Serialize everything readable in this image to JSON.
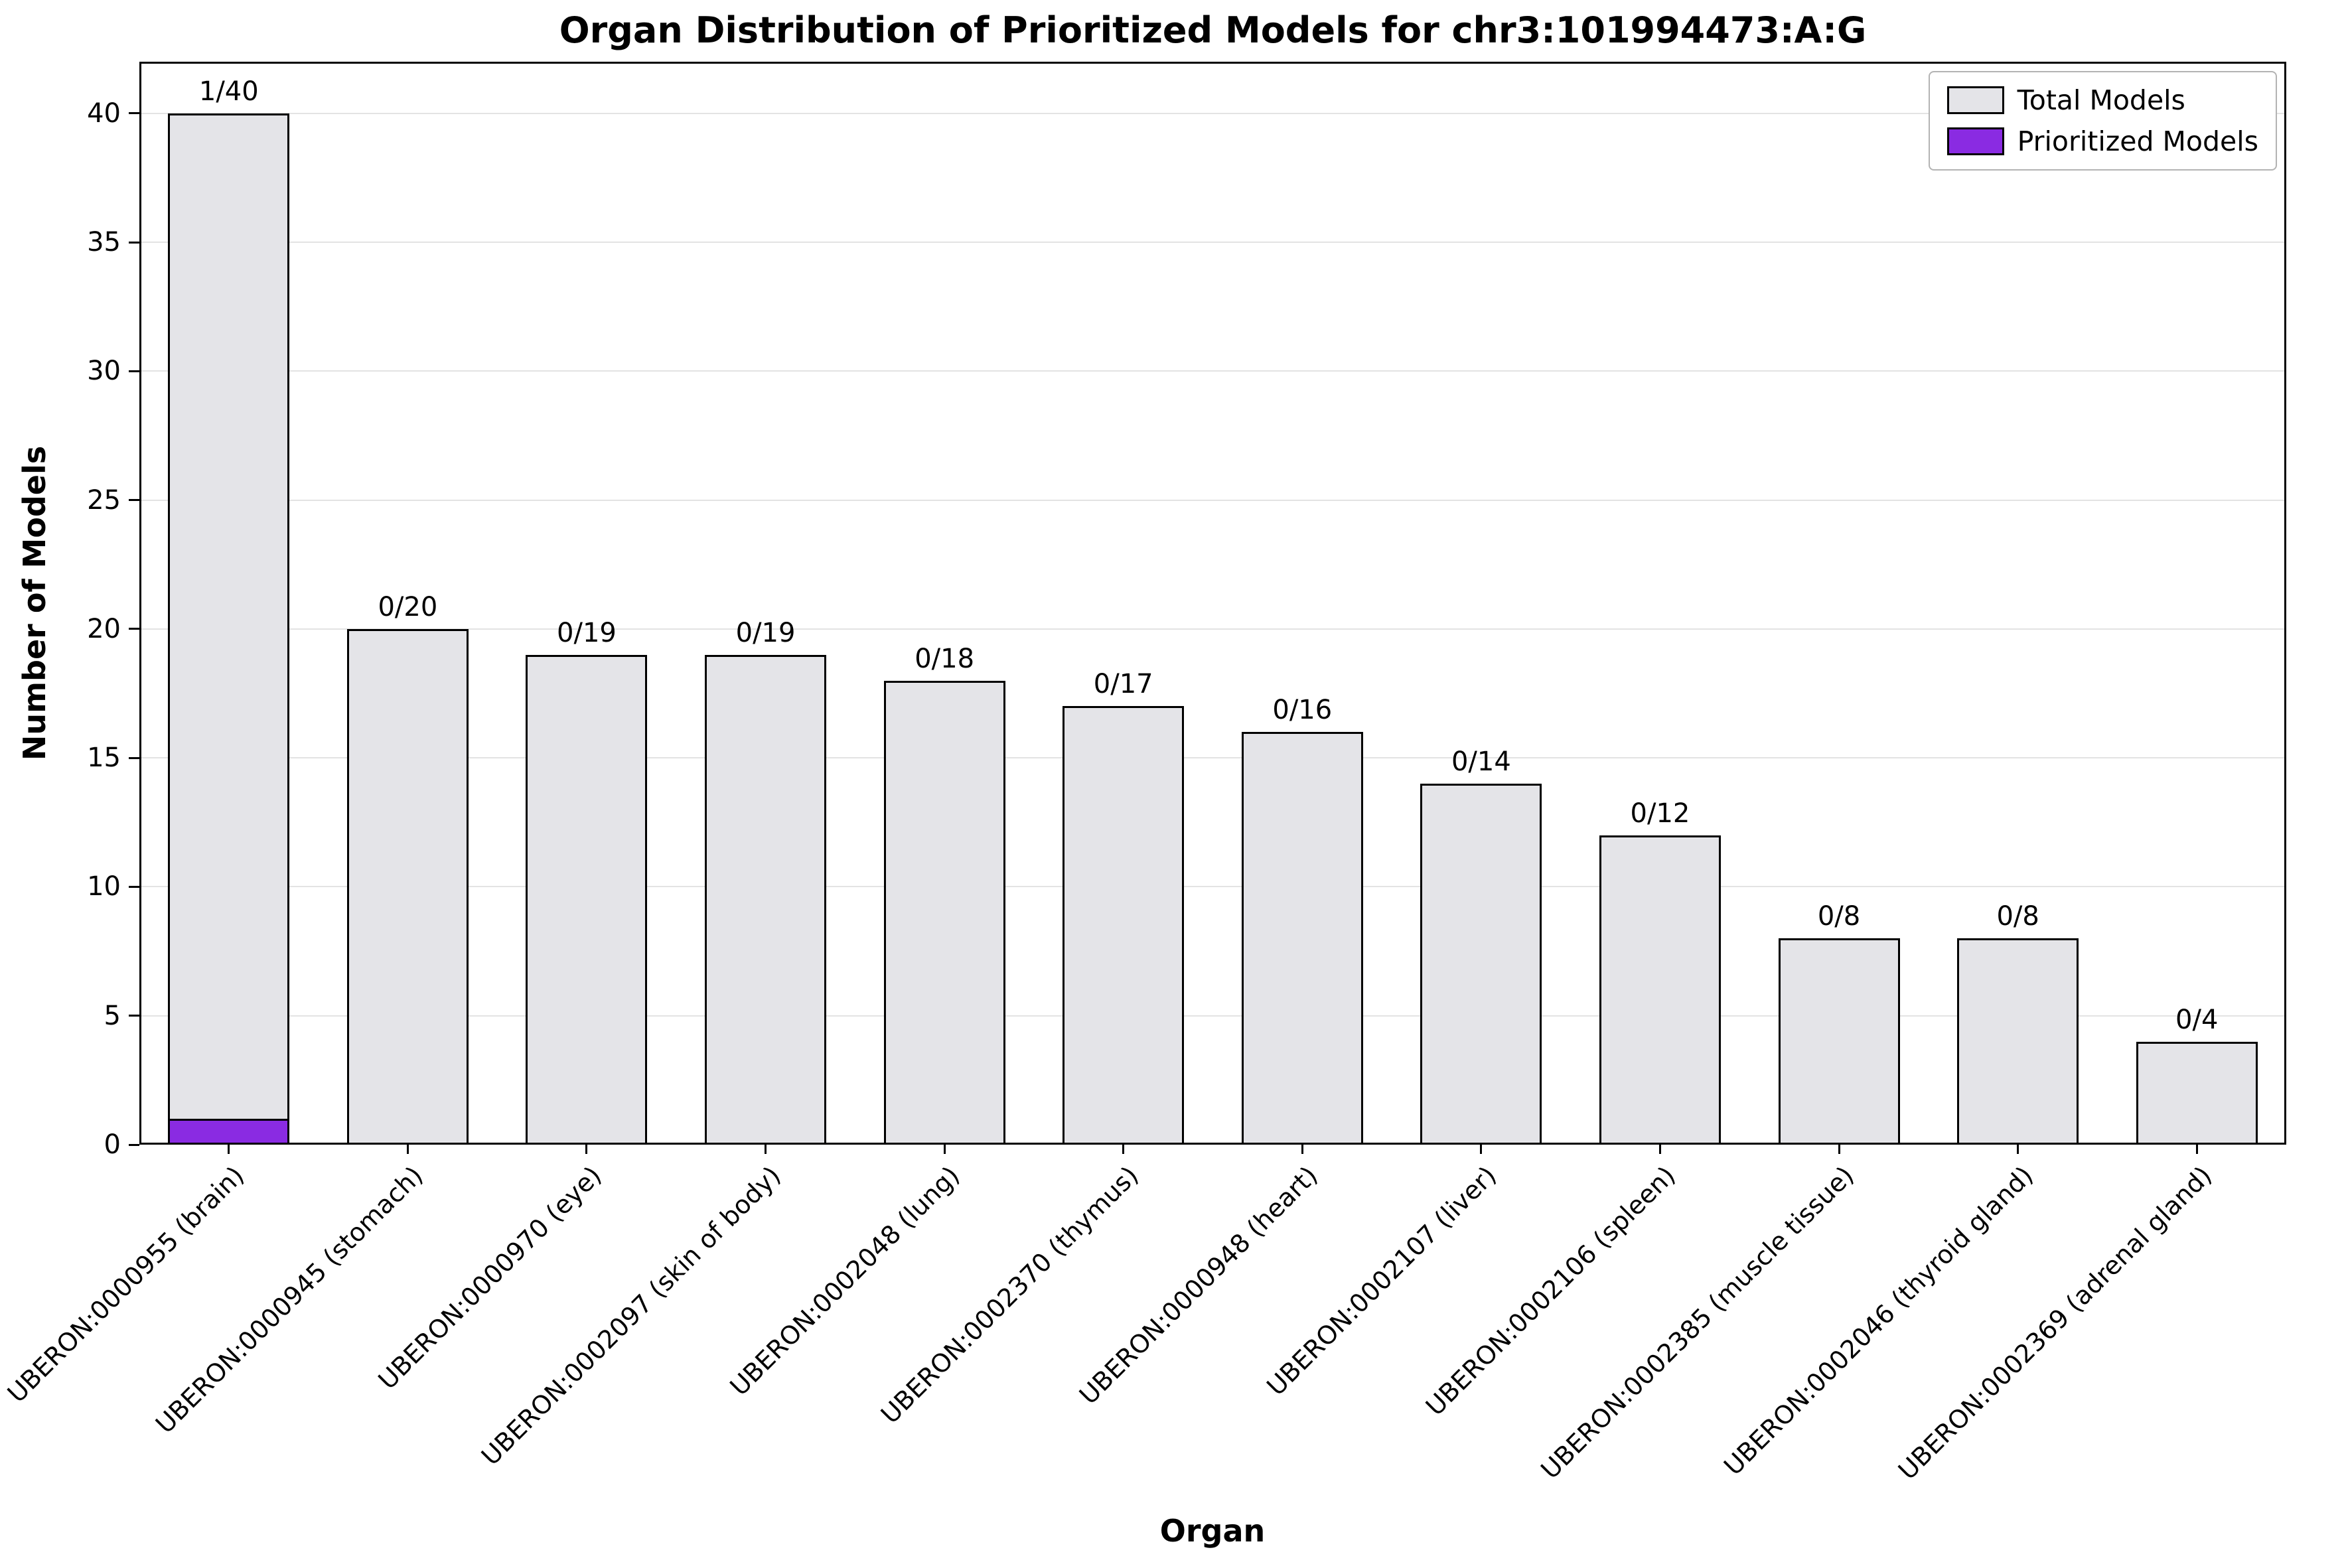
{
  "chart_data": {
    "type": "bar",
    "title": "Organ Distribution of Prioritized Models for chr3:101994473:A:G",
    "xlabel": "Organ",
    "ylabel": "Number of Models",
    "ylim": [
      0,
      42
    ],
    "yticks": [
      0,
      5,
      10,
      15,
      20,
      25,
      30,
      35,
      40
    ],
    "grid": true,
    "legend_position": "upper right",
    "background_color": "#ffffff",
    "edge_color": "#000000",
    "categories": [
      "UBERON:0000955 (brain)",
      "UBERON:0000945 (stomach)",
      "UBERON:0000970 (eye)",
      "UBERON:0002097 (skin of body)",
      "UBERON:0002048 (lung)",
      "UBERON:0002370 (thymus)",
      "UBERON:0000948 (heart)",
      "UBERON:0002107 (liver)",
      "UBERON:0002106 (spleen)",
      "UBERON:0002385 (muscle tissue)",
      "UBERON:0002046 (thyroid gland)",
      "UBERON:0002369 (adrenal gland)"
    ],
    "series": [
      {
        "name": "Total Models",
        "color": "#e4e4e8",
        "values": [
          40,
          20,
          19,
          19,
          18,
          17,
          16,
          14,
          12,
          8,
          8,
          4
        ]
      },
      {
        "name": "Prioritized Models",
        "color": "#8A2BE2",
        "values": [
          1,
          0,
          0,
          0,
          0,
          0,
          0,
          0,
          0,
          0,
          0,
          0
        ]
      }
    ],
    "bar_labels": [
      "1/40",
      "0/20",
      "0/19",
      "0/19",
      "0/18",
      "0/17",
      "0/16",
      "0/14",
      "0/12",
      "0/8",
      "0/8",
      "0/4"
    ]
  }
}
